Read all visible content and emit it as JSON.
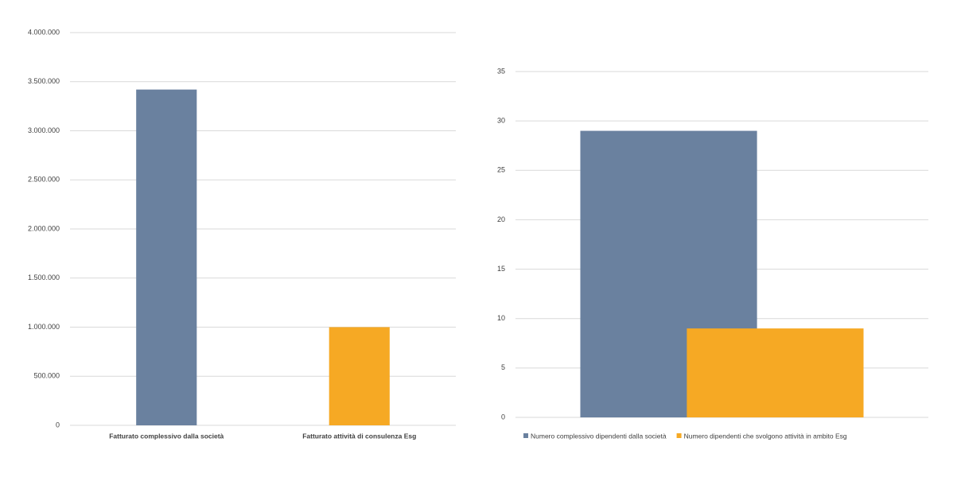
{
  "chart_data": [
    {
      "type": "bar",
      "categories": [
        "Fatturato complessivo dalla società",
        "Fatturato attività di consulenza Esg"
      ],
      "values": [
        3420000,
        1000000
      ],
      "colors": [
        "#6a819f",
        "#f6a924"
      ],
      "ylim": [
        0,
        4000000
      ],
      "yticks": [
        0,
        {
          "value": 500000,
          "label": "500.000"
        },
        {
          "value": 1000000,
          "label": "1.000.000"
        },
        {
          "value": 1500000,
          "label": "1.500.000"
        },
        {
          "value": 2000000,
          "label": "2.000.000"
        },
        {
          "value": 2500000,
          "label": "2.500.000"
        },
        {
          "value": 3000000,
          "label": "3.000.000"
        },
        {
          "value": 3500000,
          "label": "3.500.000"
        },
        {
          "value": 4000000,
          "label": "4.000.000"
        }
      ],
      "grid": true
    },
    {
      "type": "grouped_bar",
      "categories": [
        null
      ],
      "series": [
        {
          "name": "Numero complessivo dipendenti dalla società",
          "color": "#6a819f",
          "values": [
            29
          ]
        },
        {
          "name": "Numero dipendenti che svolgono attività in ambito Esg",
          "color": "#f6a924",
          "values": [
            9
          ]
        }
      ],
      "ylim": [
        0,
        35
      ],
      "yticks": [
        0,
        5,
        10,
        15,
        20,
        25,
        30,
        35
      ],
      "grid": true,
      "legend": "bottom"
    }
  ]
}
